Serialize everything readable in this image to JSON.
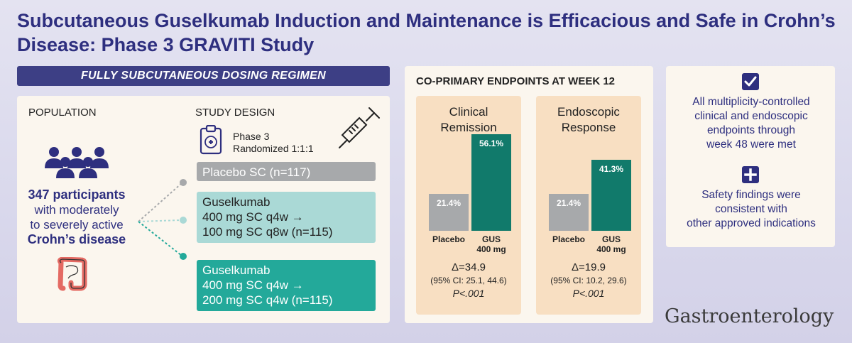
{
  "title": "Subcutaneous Guselkumab Induction and Maintenance is Efficacious and Safe in Crohn’s Disease: Phase 3 GRAVITI Study",
  "left": {
    "banner": "FULLY SUBCUTANEOUS DOSING REGIMEN",
    "population_label": "POPULATION",
    "design_label": "STUDY DESIGN",
    "design_line1": "Phase 3",
    "design_line2": "Randomized 1:1:1",
    "participants_count": "347 participants",
    "participants_line2": "with moderately",
    "participants_line3": "to severely active",
    "participants_disease": "Crohn’s disease",
    "arms": {
      "placebo": "Placebo SC (n=117)",
      "g1_line1": "Guselkumab",
      "g1_line2": "400 mg SC q4w →",
      "g1_line3": "100 mg SC q8w (n=115)",
      "g2_line1": "Guselkumab",
      "g2_line2": "400 mg SC q4w →",
      "g2_line3": "200 mg SC q4w (n=115)"
    },
    "icons": [
      "people-icon",
      "intestine-icon",
      "clipboard-icon",
      "syringe-icon"
    ]
  },
  "endpoints": {
    "title": "CO-PRIMARY ENDPOINTS AT WEEK 12",
    "clinical": {
      "head_line1": "Clinical",
      "head_line2": "Remission",
      "placebo_label": "Placebo",
      "gus_label_line1": "GUS",
      "gus_label_line2": "400 mg",
      "placebo_value_text": "21.4%",
      "gus_value_text": "56.1%",
      "delta": "Δ=34.9",
      "ci": "(95% CI: 25.1, 44.6)",
      "p": "P<.001"
    },
    "endoscopic": {
      "head_line1": "Endoscopic",
      "head_line2": "Response",
      "placebo_label": "Placebo",
      "gus_label_line1": "GUS",
      "gus_label_line2": "400 mg",
      "placebo_value_text": "21.4%",
      "gus_value_text": "41.3%",
      "delta": "Δ=19.9",
      "ci": "(95% CI: 10.2, 29.6)",
      "p": "P<.001"
    },
    "colors": {
      "placebo": "#a7a9ab",
      "gus": "#117a6b"
    }
  },
  "chart_data": [
    {
      "type": "bar",
      "title": "Clinical Remission",
      "categories": [
        "Placebo",
        "GUS 400 mg"
      ],
      "values": [
        21.4,
        56.1
      ],
      "ylim": [
        0,
        60
      ]
    },
    {
      "type": "bar",
      "title": "Endoscopic Response",
      "categories": [
        "Placebo",
        "GUS 400 mg"
      ],
      "values": [
        21.4,
        41.3
      ],
      "ylim": [
        0,
        60
      ]
    }
  ],
  "right": {
    "text1_line1": "All multiplicity-controlled",
    "text1_line2": "clinical and endoscopic",
    "text1_line3": "endpoints through",
    "text1_line4": "week 48 were met",
    "text2_line1": "Safety findings were",
    "text2_line2": "consistent with",
    "text2_line3": "other approved indications",
    "icons": [
      "check-icon",
      "plus-icon"
    ]
  },
  "journal": "Gastroenterology"
}
